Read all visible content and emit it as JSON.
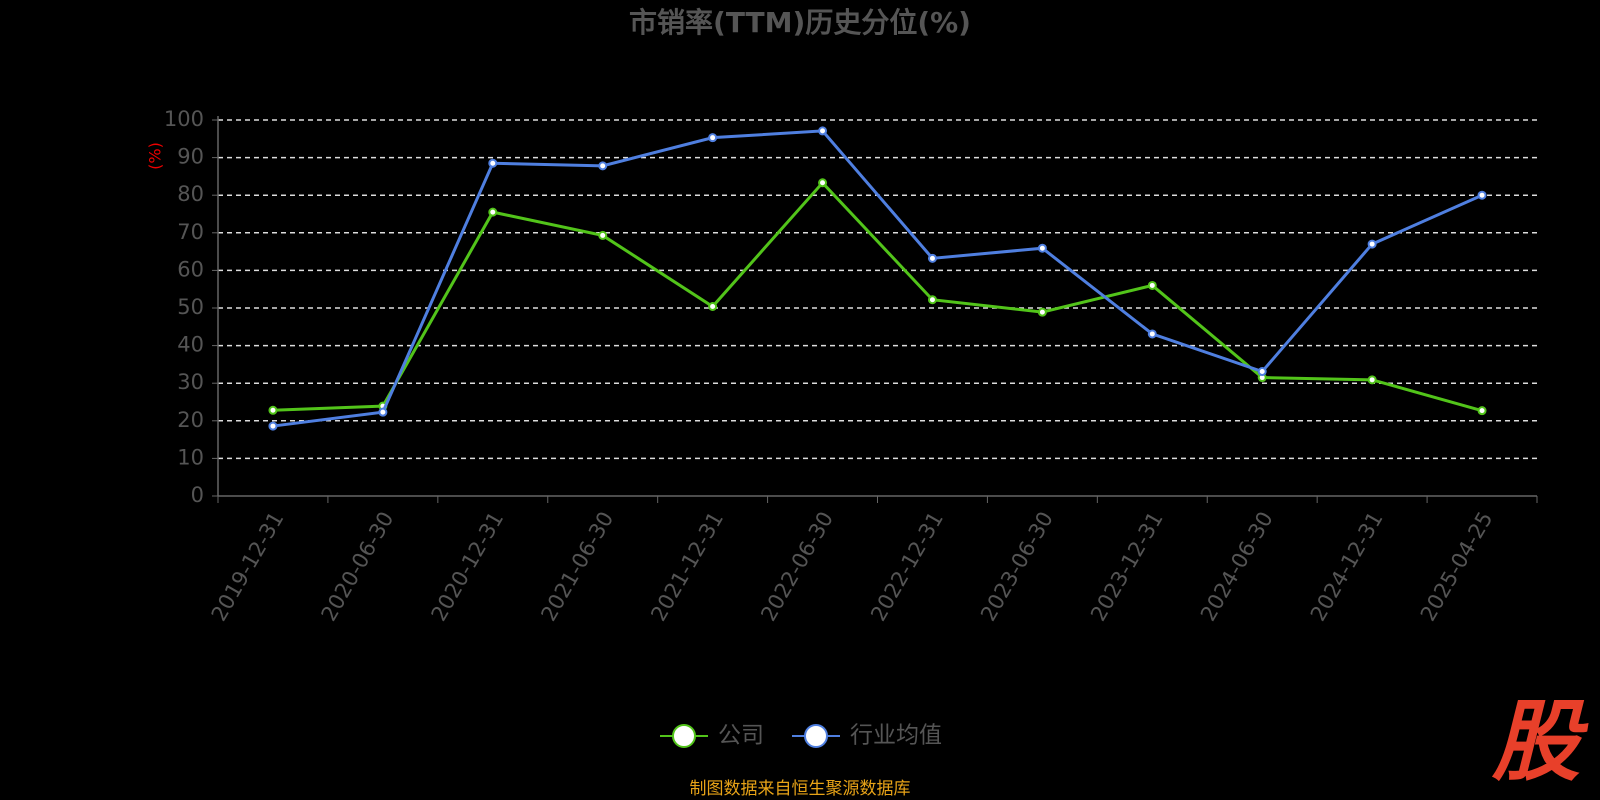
{
  "chart_data": {
    "type": "line",
    "title": "市销率(TTM)历史分位(%)",
    "y_label": "(%)",
    "categories": [
      "2019-12-31",
      "2020-06-30",
      "2020-12-31",
      "2021-06-30",
      "2021-12-31",
      "2022-06-30",
      "2022-12-31",
      "2023-06-30",
      "2023-12-31",
      "2024-06-30",
      "2024-12-31",
      "2025-04-25"
    ],
    "series": [
      {
        "name": "公司",
        "color": "#52c41a",
        "values": [
          22.8,
          23.9,
          75.5,
          69.3,
          50.4,
          83.3,
          52.2,
          48.9,
          56.0,
          31.5,
          30.9,
          22.7
        ]
      },
      {
        "name": "行业均值",
        "color": "#4f7fe0",
        "values": [
          18.6,
          22.3,
          88.5,
          87.8,
          95.3,
          97.1,
          63.2,
          65.9,
          43.1,
          33.1,
          67.0,
          80.0
        ]
      }
    ],
    "ylim": [
      0,
      100
    ],
    "yticks": [
      0,
      10,
      20,
      30,
      40,
      50,
      60,
      70,
      80,
      90,
      100
    ],
    "grid": true,
    "legend": "bottom",
    "source": "制图数据来自恒生聚源数据库",
    "watermark": "股"
  }
}
